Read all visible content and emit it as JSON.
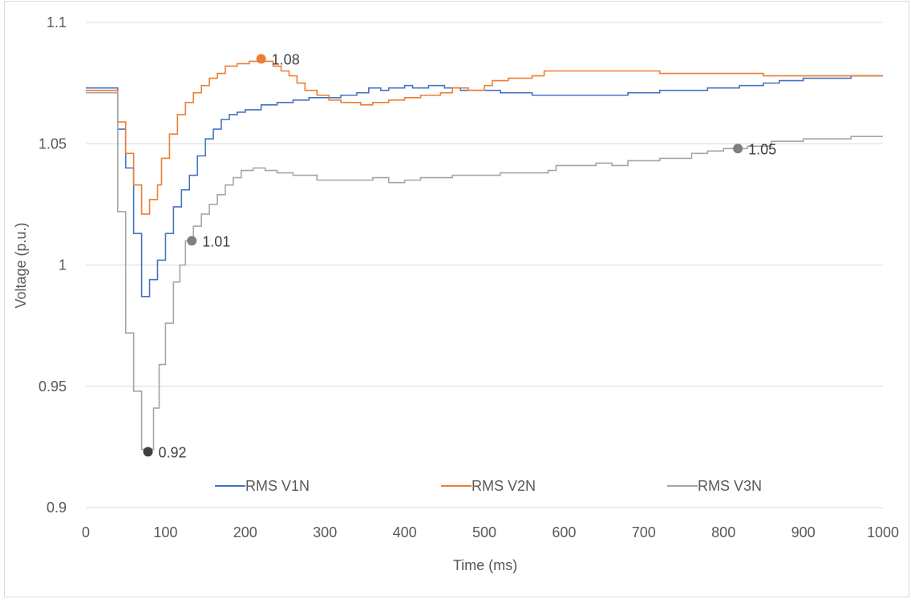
{
  "chart_data": {
    "type": "line",
    "title": "",
    "xlabel": "Time (ms)",
    "ylabel": "Voltage (p.u.)",
    "xlim": [
      0,
      1000
    ],
    "ylim": [
      0.9,
      1.1
    ],
    "x_ticks": [
      0,
      100,
      200,
      300,
      400,
      500,
      600,
      700,
      800,
      900,
      1000
    ],
    "y_ticks": [
      0.9,
      0.95,
      1,
      1.05,
      1.1
    ],
    "x_tick_labels": [
      "0",
      "100",
      "200",
      "300",
      "400",
      "500",
      "600",
      "700",
      "800",
      "900",
      "1000"
    ],
    "y_tick_labels": [
      "0.9",
      "0.95",
      "1",
      "1.05",
      "1.1"
    ],
    "grid": {
      "horizontal": true,
      "vertical": false
    },
    "legend_position": "bottom-inside",
    "series": [
      {
        "name": "RMS V1N",
        "color": "#4472C4",
        "step": true,
        "points": [
          [
            0,
            1.073
          ],
          [
            40,
            1.073
          ],
          [
            40,
            1.056
          ],
          [
            50,
            1.056
          ],
          [
            50,
            1.04
          ],
          [
            60,
            1.04
          ],
          [
            60,
            1.013
          ],
          [
            70,
            1.013
          ],
          [
            70,
            0.987
          ],
          [
            80,
            0.987
          ],
          [
            80,
            0.994
          ],
          [
            90,
            0.994
          ],
          [
            90,
            1.002
          ],
          [
            100,
            1.002
          ],
          [
            100,
            1.013
          ],
          [
            110,
            1.013
          ],
          [
            110,
            1.024
          ],
          [
            120,
            1.024
          ],
          [
            120,
            1.031
          ],
          [
            130,
            1.031
          ],
          [
            130,
            1.037
          ],
          [
            140,
            1.037
          ],
          [
            140,
            1.045
          ],
          [
            150,
            1.045
          ],
          [
            150,
            1.052
          ],
          [
            160,
            1.052
          ],
          [
            160,
            1.056
          ],
          [
            170,
            1.056
          ],
          [
            170,
            1.06
          ],
          [
            180,
            1.06
          ],
          [
            180,
            1.062
          ],
          [
            190,
            1.062
          ],
          [
            190,
            1.063
          ],
          [
            200,
            1.063
          ],
          [
            200,
            1.064
          ],
          [
            220,
            1.064
          ],
          [
            220,
            1.066
          ],
          [
            240,
            1.066
          ],
          [
            240,
            1.067
          ],
          [
            260,
            1.067
          ],
          [
            260,
            1.068
          ],
          [
            280,
            1.068
          ],
          [
            280,
            1.069
          ],
          [
            320,
            1.069
          ],
          [
            320,
            1.07
          ],
          [
            340,
            1.07
          ],
          [
            340,
            1.071
          ],
          [
            355,
            1.071
          ],
          [
            355,
            1.073
          ],
          [
            370,
            1.073
          ],
          [
            370,
            1.072
          ],
          [
            380,
            1.072
          ],
          [
            380,
            1.073
          ],
          [
            400,
            1.073
          ],
          [
            400,
            1.074
          ],
          [
            410,
            1.074
          ],
          [
            410,
            1.073
          ],
          [
            430,
            1.073
          ],
          [
            430,
            1.074
          ],
          [
            450,
            1.074
          ],
          [
            450,
            1.073
          ],
          [
            470,
            1.073
          ],
          [
            470,
            1.072
          ],
          [
            520,
            1.072
          ],
          [
            520,
            1.071
          ],
          [
            560,
            1.071
          ],
          [
            560,
            1.07
          ],
          [
            680,
            1.07
          ],
          [
            680,
            1.071
          ],
          [
            720,
            1.071
          ],
          [
            720,
            1.072
          ],
          [
            780,
            1.072
          ],
          [
            780,
            1.073
          ],
          [
            820,
            1.073
          ],
          [
            820,
            1.074
          ],
          [
            850,
            1.074
          ],
          [
            850,
            1.075
          ],
          [
            870,
            1.075
          ],
          [
            870,
            1.076
          ],
          [
            900,
            1.076
          ],
          [
            900,
            1.077
          ],
          [
            960,
            1.077
          ],
          [
            960,
            1.078
          ],
          [
            1000,
            1.078
          ]
        ]
      },
      {
        "name": "RMS V2N",
        "color": "#ED7D31",
        "step": true,
        "points": [
          [
            0,
            1.072
          ],
          [
            40,
            1.072
          ],
          [
            40,
            1.059
          ],
          [
            50,
            1.059
          ],
          [
            50,
            1.046
          ],
          [
            60,
            1.046
          ],
          [
            60,
            1.033
          ],
          [
            70,
            1.033
          ],
          [
            70,
            1.021
          ],
          [
            80,
            1.021
          ],
          [
            80,
            1.027
          ],
          [
            90,
            1.027
          ],
          [
            90,
            1.033
          ],
          [
            95,
            1.033
          ],
          [
            95,
            1.044
          ],
          [
            105,
            1.044
          ],
          [
            105,
            1.054
          ],
          [
            115,
            1.054
          ],
          [
            115,
            1.062
          ],
          [
            125,
            1.062
          ],
          [
            125,
            1.067
          ],
          [
            135,
            1.067
          ],
          [
            135,
            1.071
          ],
          [
            145,
            1.071
          ],
          [
            145,
            1.074
          ],
          [
            155,
            1.074
          ],
          [
            155,
            1.077
          ],
          [
            165,
            1.077
          ],
          [
            165,
            1.079
          ],
          [
            175,
            1.079
          ],
          [
            175,
            1.082
          ],
          [
            190,
            1.082
          ],
          [
            190,
            1.083
          ],
          [
            205,
            1.083
          ],
          [
            205,
            1.084
          ],
          [
            215,
            1.084
          ],
          [
            215,
            1.085
          ],
          [
            225,
            1.085
          ],
          [
            225,
            1.084
          ],
          [
            235,
            1.084
          ],
          [
            235,
            1.082
          ],
          [
            245,
            1.082
          ],
          [
            245,
            1.08
          ],
          [
            255,
            1.08
          ],
          [
            255,
            1.078
          ],
          [
            265,
            1.078
          ],
          [
            265,
            1.075
          ],
          [
            275,
            1.075
          ],
          [
            275,
            1.072
          ],
          [
            290,
            1.072
          ],
          [
            290,
            1.07
          ],
          [
            305,
            1.07
          ],
          [
            305,
            1.068
          ],
          [
            320,
            1.068
          ],
          [
            320,
            1.067
          ],
          [
            345,
            1.067
          ],
          [
            345,
            1.066
          ],
          [
            360,
            1.066
          ],
          [
            360,
            1.067
          ],
          [
            380,
            1.067
          ],
          [
            380,
            1.068
          ],
          [
            400,
            1.068
          ],
          [
            400,
            1.069
          ],
          [
            420,
            1.069
          ],
          [
            420,
            1.07
          ],
          [
            445,
            1.07
          ],
          [
            445,
            1.071
          ],
          [
            460,
            1.071
          ],
          [
            460,
            1.073
          ],
          [
            480,
            1.073
          ],
          [
            480,
            1.072
          ],
          [
            500,
            1.072
          ],
          [
            500,
            1.074
          ],
          [
            510,
            1.074
          ],
          [
            510,
            1.076
          ],
          [
            530,
            1.076
          ],
          [
            530,
            1.077
          ],
          [
            560,
            1.077
          ],
          [
            560,
            1.078
          ],
          [
            575,
            1.078
          ],
          [
            575,
            1.08
          ],
          [
            720,
            1.08
          ],
          [
            720,
            1.079
          ],
          [
            850,
            1.079
          ],
          [
            850,
            1.078
          ],
          [
            1000,
            1.078
          ]
        ]
      },
      {
        "name": "RMS V3N",
        "color": "#A5A5A5",
        "step": true,
        "points": [
          [
            0,
            1.071
          ],
          [
            40,
            1.071
          ],
          [
            40,
            1.022
          ],
          [
            50,
            1.022
          ],
          [
            50,
            0.972
          ],
          [
            60,
            0.972
          ],
          [
            60,
            0.948
          ],
          [
            70,
            0.948
          ],
          [
            70,
            0.924
          ],
          [
            85,
            0.924
          ],
          [
            85,
            0.941
          ],
          [
            92,
            0.941
          ],
          [
            92,
            0.959
          ],
          [
            100,
            0.959
          ],
          [
            100,
            0.976
          ],
          [
            110,
            0.976
          ],
          [
            110,
            0.993
          ],
          [
            118,
            0.993
          ],
          [
            118,
            1.0
          ],
          [
            125,
            1.0
          ],
          [
            125,
            1.01
          ],
          [
            135,
            1.01
          ],
          [
            135,
            1.016
          ],
          [
            145,
            1.016
          ],
          [
            145,
            1.021
          ],
          [
            155,
            1.021
          ],
          [
            155,
            1.025
          ],
          [
            165,
            1.025
          ],
          [
            165,
            1.029
          ],
          [
            175,
            1.029
          ],
          [
            175,
            1.033
          ],
          [
            185,
            1.033
          ],
          [
            185,
            1.036
          ],
          [
            195,
            1.036
          ],
          [
            195,
            1.039
          ],
          [
            210,
            1.039
          ],
          [
            210,
            1.04
          ],
          [
            225,
            1.04
          ],
          [
            225,
            1.039
          ],
          [
            240,
            1.039
          ],
          [
            240,
            1.038
          ],
          [
            260,
            1.038
          ],
          [
            260,
            1.037
          ],
          [
            290,
            1.037
          ],
          [
            290,
            1.035
          ],
          [
            360,
            1.035
          ],
          [
            360,
            1.036
          ],
          [
            380,
            1.036
          ],
          [
            380,
            1.034
          ],
          [
            400,
            1.034
          ],
          [
            400,
            1.035
          ],
          [
            420,
            1.035
          ],
          [
            420,
            1.036
          ],
          [
            460,
            1.036
          ],
          [
            460,
            1.037
          ],
          [
            520,
            1.037
          ],
          [
            520,
            1.038
          ],
          [
            580,
            1.038
          ],
          [
            580,
            1.039
          ],
          [
            590,
            1.039
          ],
          [
            590,
            1.041
          ],
          [
            640,
            1.041
          ],
          [
            640,
            1.042
          ],
          [
            660,
            1.042
          ],
          [
            660,
            1.041
          ],
          [
            680,
            1.041
          ],
          [
            680,
            1.043
          ],
          [
            720,
            1.043
          ],
          [
            720,
            1.044
          ],
          [
            760,
            1.044
          ],
          [
            760,
            1.046
          ],
          [
            780,
            1.046
          ],
          [
            780,
            1.047
          ],
          [
            800,
            1.047
          ],
          [
            800,
            1.048
          ],
          [
            830,
            1.048
          ],
          [
            830,
            1.049
          ],
          [
            860,
            1.049
          ],
          [
            860,
            1.051
          ],
          [
            900,
            1.051
          ],
          [
            900,
            1.052
          ],
          [
            960,
            1.052
          ],
          [
            960,
            1.053
          ],
          [
            1000,
            1.053
          ]
        ]
      }
    ],
    "annotations": [
      {
        "x": 220,
        "y": 1.085,
        "label": "1.08",
        "color": "#ED7D31"
      },
      {
        "x": 133,
        "y": 1.01,
        "label": "1.01",
        "color": "#7F7F7F"
      },
      {
        "x": 78,
        "y": 0.923,
        "label": "0.92",
        "color": "#404040"
      },
      {
        "x": 818,
        "y": 1.048,
        "label": "1.05",
        "color": "#7F7F7F"
      }
    ]
  },
  "colors": {
    "gridline": "#D9D9D9",
    "axis_line": "#D9D9D9",
    "tick_text": "#595959",
    "frame_border": "#D9D9D9"
  }
}
